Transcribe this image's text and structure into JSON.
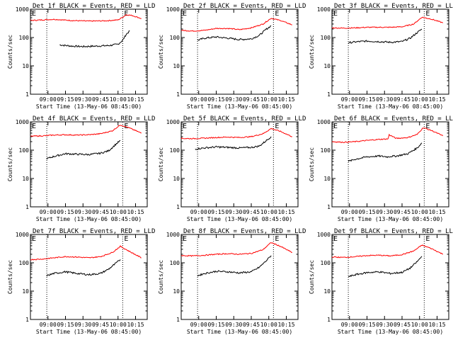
{
  "figure": {
    "xlabel": "Start Time (13-May-06 08:45:00)",
    "ylabel": "Counts/sec"
  },
  "chart_data": [
    {
      "type": "line",
      "title": "Det 1f BLACK = Events, RED = LLD",
      "xlabel": "Start Time (13-May-06 08:45:00)",
      "ylabel": "Counts/sec",
      "y_scale": "log",
      "ylim": [
        1,
        1000
      ],
      "x_ticks": [
        "09:00",
        "09:15",
        "09:30",
        "09:45",
        "10:00",
        "10:15"
      ],
      "y_ticks": [
        "1",
        "10",
        "100",
        "1000"
      ],
      "markers": [
        "E",
        "E"
      ],
      "series": [
        {
          "color": "#000000",
          "x": [
            "08:45",
            "08:59",
            "09:10",
            "09:20",
            "09:30",
            "09:42",
            "09:52",
            "10:00",
            "10:04",
            "10:07",
            "10:10"
          ],
          "values": [
            null,
            null,
            55,
            50,
            48,
            50,
            52,
            58,
            80,
            130,
            170
          ]
        },
        {
          "color": "#ff0000",
          "x": [
            "08:45",
            "08:55",
            "09:05",
            "09:20",
            "09:35",
            "09:50",
            "10:00",
            "10:04",
            "10:07",
            "10:12",
            "10:20"
          ],
          "values": [
            400,
            420,
            440,
            400,
            380,
            390,
            420,
            520,
            640,
            600,
            470
          ]
        }
      ]
    },
    {
      "type": "line",
      "title": "Det 2f BLACK = Events, RED = LLD",
      "xlabel": "Start Time (13-May-06 08:45:00)",
      "ylabel": "Counts/sec",
      "y_scale": "log",
      "ylim": [
        1,
        1000
      ],
      "x_ticks": [
        "09:00",
        "09:15",
        "09:30",
        "09:45",
        "10:00",
        "10:15"
      ],
      "y_ticks": [
        "1",
        "10",
        "100",
        "1000"
      ],
      "markers": [
        "E",
        "E"
      ],
      "series": [
        {
          "color": "#000000",
          "x": [
            "08:59",
            "09:05",
            "09:15",
            "09:25",
            "09:35",
            "09:45",
            "09:52",
            "09:58",
            "10:02"
          ],
          "values": [
            80,
            95,
            105,
            95,
            85,
            90,
            120,
            200,
            260
          ]
        },
        {
          "color": "#ff0000",
          "x": [
            "08:45",
            "08:55",
            "09:05",
            "09:15",
            "09:25",
            "09:35",
            "09:45",
            "09:55",
            "10:02",
            "10:10",
            "10:20"
          ],
          "values": [
            180,
            170,
            180,
            210,
            210,
            190,
            220,
            300,
            480,
            400,
            280
          ]
        }
      ]
    },
    {
      "type": "line",
      "title": "Det 3f BLACK = Events, RED = LLD",
      "xlabel": "Start Time (13-May-06 08:45:00)",
      "ylabel": "Counts/sec",
      "y_scale": "log",
      "ylim": [
        1,
        1000
      ],
      "x_ticks": [
        "09:00",
        "09:15",
        "09:30",
        "09:45",
        "10:00",
        "10:15"
      ],
      "y_ticks": [
        "1",
        "10",
        "100",
        "1000"
      ],
      "markers": [
        "E",
        "E"
      ],
      "series": [
        {
          "color": "#000000",
          "x": [
            "08:59",
            "09:05",
            "09:15",
            "09:25",
            "09:35",
            "09:45",
            "09:52",
            "09:58",
            "10:02"
          ],
          "values": [
            65,
            70,
            75,
            72,
            68,
            72,
            95,
            150,
            200
          ]
        },
        {
          "color": "#ff0000",
          "x": [
            "08:45",
            "08:55",
            "09:05",
            "09:15",
            "09:25",
            "09:35",
            "09:45",
            "09:55",
            "10:02",
            "10:10",
            "10:20"
          ],
          "values": [
            220,
            215,
            220,
            230,
            230,
            230,
            240,
            300,
            520,
            450,
            330
          ]
        }
      ]
    },
    {
      "type": "line",
      "title": "Det 4f BLACK = Events, RED = LLD",
      "xlabel": "Start Time (13-May-06 08:45:00)",
      "ylabel": "Counts/sec",
      "y_scale": "log",
      "ylim": [
        1,
        1000
      ],
      "x_ticks": [
        "09:00",
        "09:15",
        "09:30",
        "09:45",
        "10:00",
        "10:15"
      ],
      "y_ticks": [
        "1",
        "10",
        "100",
        "1000"
      ],
      "markers": [
        "E",
        "E"
      ],
      "series": [
        {
          "color": "#000000",
          "x": [
            "08:59",
            "09:05",
            "09:15",
            "09:25",
            "09:35",
            "09:45",
            "09:52",
            "09:58",
            "10:02"
          ],
          "values": [
            50,
            60,
            75,
            72,
            70,
            78,
            95,
            160,
            220
          ]
        },
        {
          "color": "#ff0000",
          "x": [
            "08:45",
            "08:55",
            "09:05",
            "09:15",
            "09:25",
            "09:35",
            "09:45",
            "09:55",
            "10:02",
            "10:10",
            "10:20"
          ],
          "values": [
            310,
            320,
            340,
            350,
            340,
            350,
            380,
            480,
            780,
            600,
            400
          ]
        }
      ]
    },
    {
      "type": "line",
      "title": "Det 5f BLACK = Events, RED = LLD",
      "xlabel": "Start Time (13-May-06 08:45:00)",
      "ylabel": "Counts/sec",
      "y_scale": "log",
      "ylim": [
        1,
        1000
      ],
      "x_ticks": [
        "09:00",
        "09:15",
        "09:30",
        "09:45",
        "10:00",
        "10:15"
      ],
      "y_ticks": [
        "1",
        "10",
        "100",
        "1000"
      ],
      "markers": [
        "E",
        "E"
      ],
      "series": [
        {
          "color": "#000000",
          "x": [
            "08:57",
            "09:05",
            "09:15",
            "09:25",
            "09:35",
            "09:45",
            "09:52",
            "09:58",
            "10:02"
          ],
          "values": [
            110,
            120,
            130,
            125,
            120,
            125,
            140,
            220,
            300
          ]
        },
        {
          "color": "#ff0000",
          "x": [
            "08:45",
            "08:55",
            "09:05",
            "09:15",
            "09:25",
            "09:35",
            "09:45",
            "09:55",
            "10:02",
            "10:10",
            "10:20"
          ],
          "values": [
            260,
            255,
            265,
            280,
            290,
            280,
            300,
            380,
            580,
            460,
            300
          ]
        }
      ]
    },
    {
      "type": "line",
      "title": "Det 6f BLACK = Events, RED = LLD",
      "xlabel": "Start Time (13-May-06 08:45:00)",
      "ylabel": "Counts/sec",
      "y_scale": "log",
      "ylim": [
        1,
        1000
      ],
      "x_ticks": [
        "09:00",
        "09:15",
        "09:30",
        "09:45",
        "10:00",
        "10:15"
      ],
      "y_ticks": [
        "1",
        "10",
        "100",
        "1000"
      ],
      "markers": [
        "E",
        "E"
      ],
      "series": [
        {
          "color": "#000000",
          "x": [
            "08:59",
            "09:05",
            "09:15",
            "09:25",
            "09:33",
            "09:34",
            "09:40",
            "09:50",
            "09:58",
            "10:02"
          ],
          "values": [
            40,
            48,
            58,
            62,
            58,
            60,
            62,
            75,
            120,
            180
          ]
        },
        {
          "color": "#ff0000",
          "x": [
            "08:45",
            "08:55",
            "09:05",
            "09:15",
            "09:25",
            "09:33",
            "09:34",
            "09:40",
            "09:50",
            "09:58",
            "10:03",
            "10:10",
            "10:20"
          ],
          "values": [
            200,
            190,
            200,
            220,
            240,
            250,
            350,
            260,
            280,
            360,
            620,
            500,
            320
          ]
        }
      ]
    },
    {
      "type": "line",
      "title": "Det 7f BLACK = Events, RED = LLD",
      "xlabel": "Start Time (13-May-06 08:45:00)",
      "ylabel": "Counts/sec",
      "y_scale": "log",
      "ylim": [
        1,
        1000
      ],
      "x_ticks": [
        "09:00",
        "09:15",
        "09:30",
        "09:45",
        "10:00",
        "10:15"
      ],
      "y_ticks": [
        "1",
        "10",
        "100",
        "1000"
      ],
      "markers": [
        "E",
        "E"
      ],
      "series": [
        {
          "color": "#000000",
          "x": [
            "08:59",
            "09:05",
            "09:15",
            "09:25",
            "09:35",
            "09:45",
            "09:52",
            "09:58",
            "10:02"
          ],
          "values": [
            35,
            42,
            48,
            42,
            38,
            42,
            60,
            95,
            130
          ]
        },
        {
          "color": "#ff0000",
          "x": [
            "08:45",
            "08:55",
            "09:05",
            "09:15",
            "09:25",
            "09:35",
            "09:45",
            "09:55",
            "10:02",
            "10:10",
            "10:20"
          ],
          "values": [
            130,
            135,
            150,
            165,
            160,
            150,
            165,
            230,
            380,
            250,
            150
          ]
        }
      ]
    },
    {
      "type": "line",
      "title": "Det 8f BLACK = Events, RED = LLD",
      "xlabel": "Start Time (13-May-06 08:45:00)",
      "ylabel": "Counts/sec",
      "y_scale": "log",
      "ylim": [
        1,
        1000
      ],
      "x_ticks": [
        "09:00",
        "09:15",
        "09:30",
        "09:45",
        "10:00",
        "10:15"
      ],
      "y_ticks": [
        "1",
        "10",
        "100",
        "1000"
      ],
      "markers": [
        "E",
        "E"
      ],
      "series": [
        {
          "color": "#000000",
          "x": [
            "08:59",
            "09:05",
            "09:15",
            "09:25",
            "09:35",
            "09:45",
            "09:52",
            "09:58",
            "10:02"
          ],
          "values": [
            35,
            42,
            50,
            48,
            44,
            48,
            70,
            120,
            180
          ]
        },
        {
          "color": "#ff0000",
          "x": [
            "08:45",
            "08:55",
            "09:05",
            "09:15",
            "09:25",
            "09:35",
            "09:45",
            "09:55",
            "10:02",
            "10:10",
            "10:20"
          ],
          "values": [
            180,
            175,
            185,
            200,
            210,
            200,
            215,
            290,
            520,
            380,
            230
          ]
        }
      ]
    },
    {
      "type": "line",
      "title": "Det 9f BLACK = Events, RED = LLD",
      "xlabel": "Start Time (13-May-06 08:45:00)",
      "ylabel": "Counts/sec",
      "y_scale": "log",
      "ylim": [
        1,
        1000
      ],
      "x_ticks": [
        "09:00",
        "09:15",
        "09:30",
        "09:45",
        "10:00",
        "10:15"
      ],
      "y_ticks": [
        "1",
        "10",
        "100",
        "1000"
      ],
      "markers": [
        "E",
        "E"
      ],
      "series": [
        {
          "color": "#000000",
          "x": [
            "08:59",
            "09:05",
            "09:15",
            "09:25",
            "09:35",
            "09:45",
            "09:52",
            "09:58",
            "10:02"
          ],
          "values": [
            32,
            38,
            45,
            48,
            42,
            46,
            65,
            110,
            170
          ]
        },
        {
          "color": "#ff0000",
          "x": [
            "08:45",
            "08:55",
            "09:05",
            "09:15",
            "09:25",
            "09:35",
            "09:45",
            "09:55",
            "10:02",
            "10:10",
            "10:20"
          ],
          "values": [
            160,
            155,
            165,
            180,
            185,
            175,
            195,
            260,
            420,
            320,
            200
          ]
        }
      ]
    }
  ]
}
